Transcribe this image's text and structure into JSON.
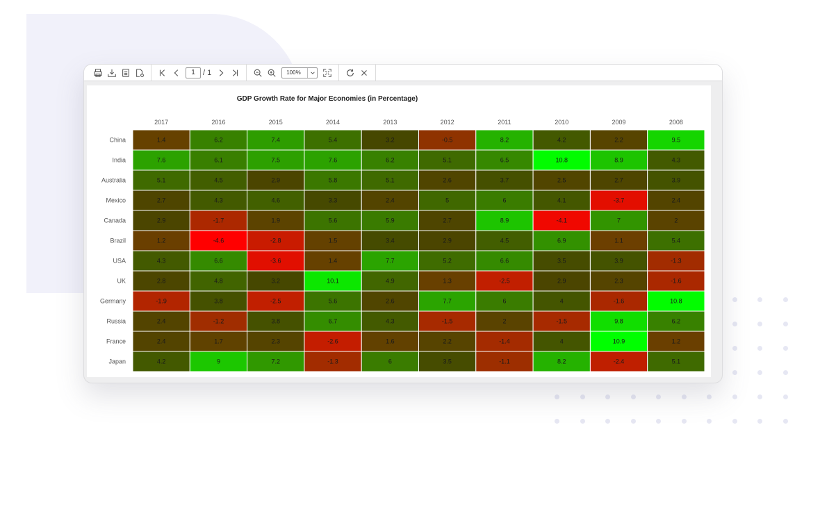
{
  "toolbar": {
    "page_current": "1",
    "page_total": "/ 1",
    "zoom": "100%",
    "icons": [
      "print-icon",
      "download-icon",
      "document-icon",
      "export-icon",
      "first-page-icon",
      "previous-page-icon",
      "next-page-icon",
      "last-page-icon",
      "zoom-out-icon",
      "zoom-in-icon",
      "fit-page-icon",
      "refresh-icon",
      "close-icon"
    ]
  },
  "chart_data": {
    "type": "heatmap",
    "title": "GDP Growth Rate for Major Economies (in Percentage)",
    "x": [
      "2017",
      "2016",
      "2015",
      "2014",
      "2013",
      "2012",
      "2011",
      "2010",
      "2009",
      "2008"
    ],
    "y": [
      "China",
      "India",
      "Australia",
      "Mexico",
      "Canada",
      "Brazil",
      "USA",
      "UK",
      "Germany",
      "Russia",
      "France",
      "Japan"
    ],
    "values": [
      [
        1.4,
        6.2,
        7.4,
        5.4,
        3.2,
        -0.5,
        8.2,
        4.2,
        2.2,
        9.5
      ],
      [
        7.6,
        6.1,
        7.5,
        7.6,
        6.2,
        5.1,
        6.5,
        10.8,
        8.9,
        4.3
      ],
      [
        5.1,
        4.5,
        2.9,
        5.8,
        5.1,
        2.6,
        3.7,
        2.5,
        2.7,
        3.9
      ],
      [
        2.7,
        4.3,
        4.6,
        3.3,
        2.4,
        5,
        6,
        4.1,
        -3.7,
        2.4
      ],
      [
        2.9,
        -1.7,
        1.9,
        5.6,
        5.9,
        2.7,
        8.9,
        -4.1,
        7,
        2
      ],
      [
        1.2,
        -4.6,
        -2.8,
        1.5,
        3.4,
        2.9,
        4.5,
        6.9,
        1.1,
        5.4
      ],
      [
        4.3,
        6.6,
        -3.6,
        1.4,
        7.7,
        5.2,
        6.6,
        3.5,
        3.9,
        -1.3
      ],
      [
        2.8,
        4.8,
        3.2,
        10.1,
        4.9,
        1.3,
        -2.5,
        2.9,
        2.3,
        -1.6
      ],
      [
        -1.9,
        3.8,
        -2.5,
        5.6,
        2.6,
        7.7,
        6,
        4,
        -1.6,
        10.8
      ],
      [
        2.4,
        -1.2,
        3.8,
        6.7,
        4.3,
        -1.5,
        2,
        -1.5,
        9.8,
        6.2
      ],
      [
        2.4,
        1.7,
        2.3,
        -2.6,
        1.6,
        2.2,
        -1.4,
        4,
        10.9,
        1.2
      ],
      [
        4.2,
        9,
        7.2,
        -1.3,
        6,
        3.5,
        -1.1,
        8.2,
        -2.4,
        5.1
      ]
    ],
    "color_scale": {
      "low": "#ff0000",
      "high": "#00ff00"
    },
    "legend": "none"
  }
}
